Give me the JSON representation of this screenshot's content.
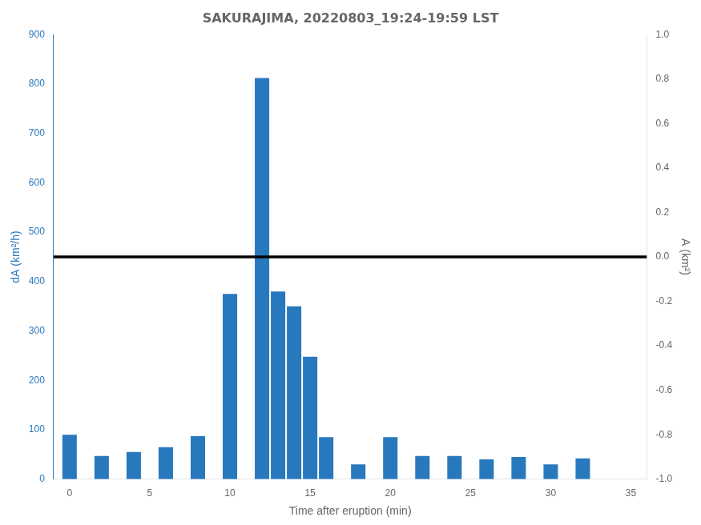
{
  "chart_data": {
    "type": "bar",
    "title": "SAKURAJIMA, 20220803_19:24-19:59 LST",
    "xlabel": "Time after eruption (min)",
    "ylabel": "dA (km²/h)",
    "y2label": "A (km²)",
    "x": [
      0,
      2,
      4,
      6,
      8,
      10,
      12,
      13,
      14,
      15,
      16,
      18,
      20,
      22,
      24,
      26,
      28,
      30,
      32,
      34
    ],
    "values": [
      90,
      47,
      55,
      65,
      87,
      375,
      812,
      380,
      350,
      248,
      85,
      30,
      85,
      47,
      47,
      40,
      45,
      30,
      42,
      0
    ],
    "color": "#2878BE",
    "xlim": [
      -1,
      36
    ],
    "xticks": [
      0,
      5,
      10,
      15,
      20,
      25,
      30,
      35
    ],
    "ylim": [
      0,
      900
    ],
    "yticks": [
      0,
      100,
      200,
      300,
      400,
      500,
      600,
      700,
      800,
      900
    ],
    "y2lim": [
      -1,
      1
    ],
    "y2ticks": [
      {
        "value": -1,
        "label": "-1.0"
      },
      -0.8,
      -0.6,
      -0.4,
      -0.2,
      {
        "value": 0,
        "label": "0.0"
      },
      0.2,
      0.4,
      0.6,
      0.8,
      {
        "value": 1,
        "label": "1.0"
      }
    ],
    "grid": false,
    "reference_lines": [
      {
        "axis": "y",
        "value": 450,
        "color": "black"
      }
    ]
  }
}
